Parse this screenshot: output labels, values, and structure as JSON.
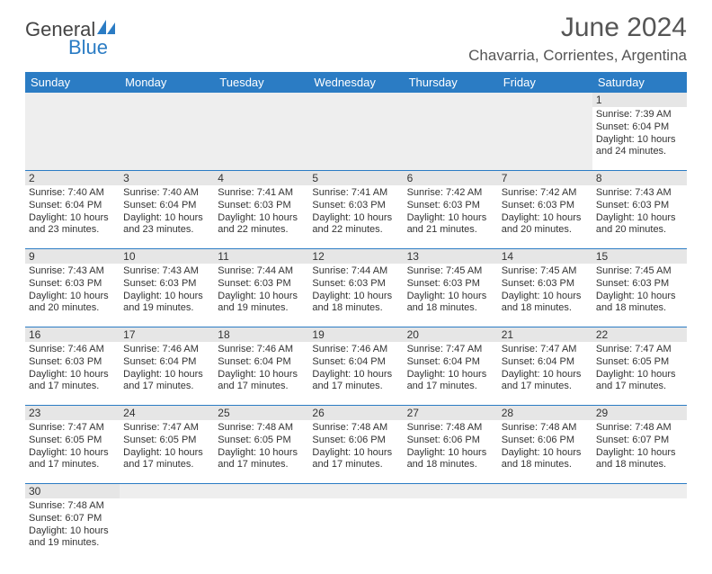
{
  "logo": {
    "general": "General",
    "blue": "Blue"
  },
  "title": "June 2024",
  "location": "Chavarria, Corrientes, Argentina",
  "day_headers": [
    "Sunday",
    "Monday",
    "Tuesday",
    "Wednesday",
    "Thursday",
    "Friday",
    "Saturday"
  ],
  "colors": {
    "header_bg": "#2b7cc4",
    "header_text": "#ffffff",
    "shade": "#e6e6e6",
    "text": "#333333",
    "rule": "#2b7cc4"
  },
  "weeks": [
    [
      null,
      null,
      null,
      null,
      null,
      null,
      {
        "n": "1",
        "sunrise": "Sunrise: 7:39 AM",
        "sunset": "Sunset: 6:04 PM",
        "daylight": "Daylight: 10 hours and 24 minutes."
      }
    ],
    [
      {
        "n": "2",
        "sunrise": "Sunrise: 7:40 AM",
        "sunset": "Sunset: 6:04 PM",
        "daylight": "Daylight: 10 hours and 23 minutes."
      },
      {
        "n": "3",
        "sunrise": "Sunrise: 7:40 AM",
        "sunset": "Sunset: 6:04 PM",
        "daylight": "Daylight: 10 hours and 23 minutes."
      },
      {
        "n": "4",
        "sunrise": "Sunrise: 7:41 AM",
        "sunset": "Sunset: 6:03 PM",
        "daylight": "Daylight: 10 hours and 22 minutes."
      },
      {
        "n": "5",
        "sunrise": "Sunrise: 7:41 AM",
        "sunset": "Sunset: 6:03 PM",
        "daylight": "Daylight: 10 hours and 22 minutes."
      },
      {
        "n": "6",
        "sunrise": "Sunrise: 7:42 AM",
        "sunset": "Sunset: 6:03 PM",
        "daylight": "Daylight: 10 hours and 21 minutes."
      },
      {
        "n": "7",
        "sunrise": "Sunrise: 7:42 AM",
        "sunset": "Sunset: 6:03 PM",
        "daylight": "Daylight: 10 hours and 20 minutes."
      },
      {
        "n": "8",
        "sunrise": "Sunrise: 7:43 AM",
        "sunset": "Sunset: 6:03 PM",
        "daylight": "Daylight: 10 hours and 20 minutes."
      }
    ],
    [
      {
        "n": "9",
        "sunrise": "Sunrise: 7:43 AM",
        "sunset": "Sunset: 6:03 PM",
        "daylight": "Daylight: 10 hours and 20 minutes."
      },
      {
        "n": "10",
        "sunrise": "Sunrise: 7:43 AM",
        "sunset": "Sunset: 6:03 PM",
        "daylight": "Daylight: 10 hours and 19 minutes."
      },
      {
        "n": "11",
        "sunrise": "Sunrise: 7:44 AM",
        "sunset": "Sunset: 6:03 PM",
        "daylight": "Daylight: 10 hours and 19 minutes."
      },
      {
        "n": "12",
        "sunrise": "Sunrise: 7:44 AM",
        "sunset": "Sunset: 6:03 PM",
        "daylight": "Daylight: 10 hours and 18 minutes."
      },
      {
        "n": "13",
        "sunrise": "Sunrise: 7:45 AM",
        "sunset": "Sunset: 6:03 PM",
        "daylight": "Daylight: 10 hours and 18 minutes."
      },
      {
        "n": "14",
        "sunrise": "Sunrise: 7:45 AM",
        "sunset": "Sunset: 6:03 PM",
        "daylight": "Daylight: 10 hours and 18 minutes."
      },
      {
        "n": "15",
        "sunrise": "Sunrise: 7:45 AM",
        "sunset": "Sunset: 6:03 PM",
        "daylight": "Daylight: 10 hours and 18 minutes."
      }
    ],
    [
      {
        "n": "16",
        "sunrise": "Sunrise: 7:46 AM",
        "sunset": "Sunset: 6:03 PM",
        "daylight": "Daylight: 10 hours and 17 minutes."
      },
      {
        "n": "17",
        "sunrise": "Sunrise: 7:46 AM",
        "sunset": "Sunset: 6:04 PM",
        "daylight": "Daylight: 10 hours and 17 minutes."
      },
      {
        "n": "18",
        "sunrise": "Sunrise: 7:46 AM",
        "sunset": "Sunset: 6:04 PM",
        "daylight": "Daylight: 10 hours and 17 minutes."
      },
      {
        "n": "19",
        "sunrise": "Sunrise: 7:46 AM",
        "sunset": "Sunset: 6:04 PM",
        "daylight": "Daylight: 10 hours and 17 minutes."
      },
      {
        "n": "20",
        "sunrise": "Sunrise: 7:47 AM",
        "sunset": "Sunset: 6:04 PM",
        "daylight": "Daylight: 10 hours and 17 minutes."
      },
      {
        "n": "21",
        "sunrise": "Sunrise: 7:47 AM",
        "sunset": "Sunset: 6:04 PM",
        "daylight": "Daylight: 10 hours and 17 minutes."
      },
      {
        "n": "22",
        "sunrise": "Sunrise: 7:47 AM",
        "sunset": "Sunset: 6:05 PM",
        "daylight": "Daylight: 10 hours and 17 minutes."
      }
    ],
    [
      {
        "n": "23",
        "sunrise": "Sunrise: 7:47 AM",
        "sunset": "Sunset: 6:05 PM",
        "daylight": "Daylight: 10 hours and 17 minutes."
      },
      {
        "n": "24",
        "sunrise": "Sunrise: 7:47 AM",
        "sunset": "Sunset: 6:05 PM",
        "daylight": "Daylight: 10 hours and 17 minutes."
      },
      {
        "n": "25",
        "sunrise": "Sunrise: 7:48 AM",
        "sunset": "Sunset: 6:05 PM",
        "daylight": "Daylight: 10 hours and 17 minutes."
      },
      {
        "n": "26",
        "sunrise": "Sunrise: 7:48 AM",
        "sunset": "Sunset: 6:06 PM",
        "daylight": "Daylight: 10 hours and 17 minutes."
      },
      {
        "n": "27",
        "sunrise": "Sunrise: 7:48 AM",
        "sunset": "Sunset: 6:06 PM",
        "daylight": "Daylight: 10 hours and 18 minutes."
      },
      {
        "n": "28",
        "sunrise": "Sunrise: 7:48 AM",
        "sunset": "Sunset: 6:06 PM",
        "daylight": "Daylight: 10 hours and 18 minutes."
      },
      {
        "n": "29",
        "sunrise": "Sunrise: 7:48 AM",
        "sunset": "Sunset: 6:07 PM",
        "daylight": "Daylight: 10 hours and 18 minutes."
      }
    ],
    [
      {
        "n": "30",
        "sunrise": "Sunrise: 7:48 AM",
        "sunset": "Sunset: 6:07 PM",
        "daylight": "Daylight: 10 hours and 19 minutes."
      },
      null,
      null,
      null,
      null,
      null,
      null
    ]
  ]
}
